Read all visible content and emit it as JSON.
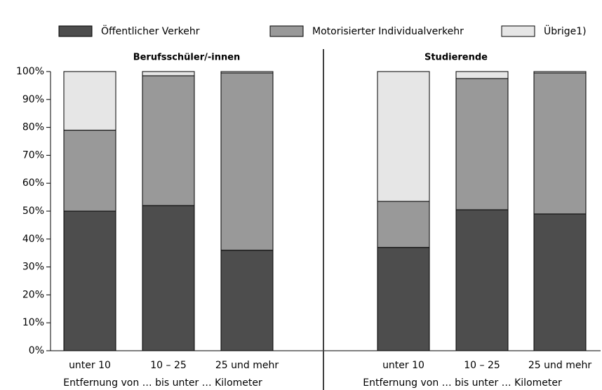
{
  "chart_data": [
    {
      "type": "bar",
      "stacked": true,
      "title": "Berufsschüler/-innen",
      "categories": [
        "unter 10",
        "10 – 25",
        "25 und mehr"
      ],
      "xlabel": "Entfernung von … bis unter … Kilometer",
      "series": [
        {
          "name": "Öffentlicher Verkehr",
          "color": "#4d4d4d",
          "values": [
            50,
            52,
            36
          ]
        },
        {
          "name": "Motorisierter Individualverkehr",
          "color": "#999999",
          "values": [
            29,
            46.5,
            63.5
          ]
        },
        {
          "name": "Übrige1)",
          "color": "#e6e6e6",
          "values": [
            21,
            1.5,
            0.5
          ]
        }
      ],
      "ylim": [
        0,
        100
      ],
      "yticks": [
        {
          "value": 0,
          "label": "0%"
        },
        {
          "value": 10,
          "label": "10%"
        },
        {
          "value": 20,
          "label": "20%"
        },
        {
          "value": 30,
          "label": "30%"
        },
        {
          "value": 40,
          "label": "40%"
        },
        {
          "value": 50,
          "label": "50%"
        },
        {
          "value": 60,
          "label": "60%"
        },
        {
          "value": 70,
          "label": "70%"
        },
        {
          "value": 80,
          "label": "80%"
        },
        {
          "value": 90,
          "label": "90%"
        },
        {
          "value": 100,
          "label": "100%"
        }
      ]
    },
    {
      "type": "bar",
      "stacked": true,
      "title": "Studierende",
      "categories": [
        "unter 10",
        "10 – 25",
        "25 und mehr"
      ],
      "xlabel": "Entfernung von … bis unter … Kilometer",
      "series": [
        {
          "color": "#4d4d4d",
          "values": [
            37,
            50.5,
            49
          ]
        },
        {
          "color": "#999999",
          "values": [
            16.5,
            47,
            50.5
          ]
        },
        {
          "color": "#e6e6e6",
          "values": [
            46.5,
            2.5,
            0.5
          ]
        }
      ],
      "ylim": [
        0,
        100
      ]
    }
  ]
}
